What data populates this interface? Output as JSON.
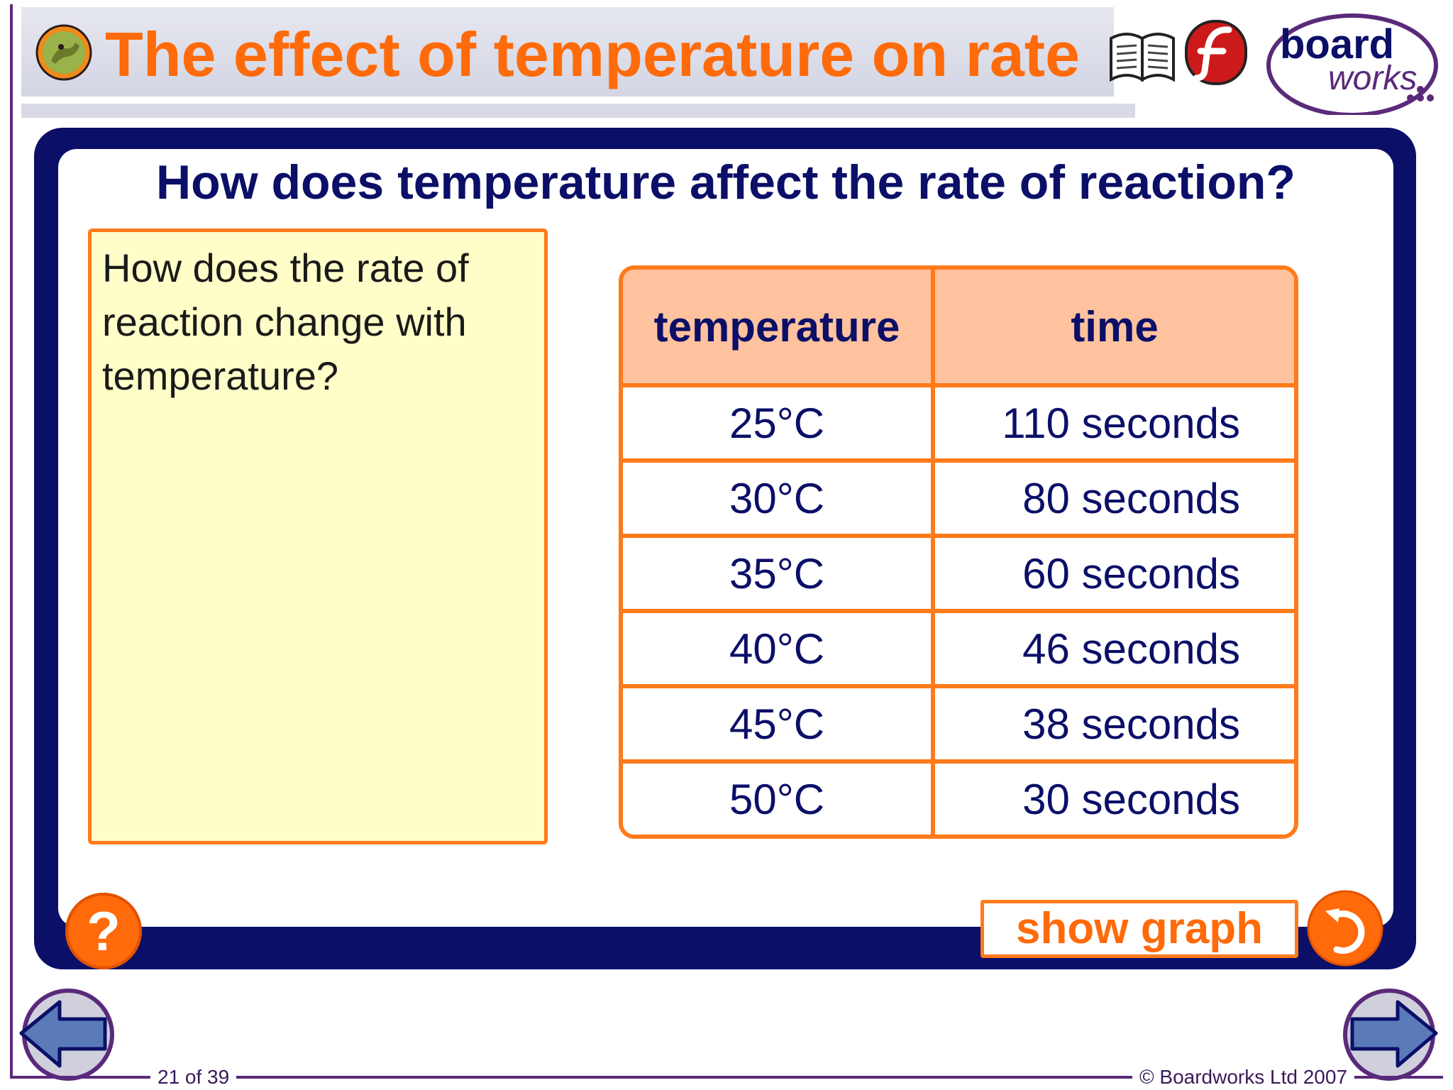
{
  "header": {
    "title": "The effect of temperature on rate",
    "brand_top": "board",
    "brand_bottom": "works",
    "icons": [
      "character-logo-icon",
      "book-icon",
      "flash-icon",
      "boardworks-logo"
    ]
  },
  "slide": {
    "question": "How does temperature affect the rate of reaction?",
    "prompt": "How does the rate of reaction change with temperature?",
    "table": {
      "headers": [
        "temperature",
        "time"
      ],
      "rows": [
        [
          "25°C",
          "110 seconds"
        ],
        [
          "30°C",
          "80 seconds"
        ],
        [
          "35°C",
          "60 seconds"
        ],
        [
          "40°C",
          "46 seconds"
        ],
        [
          "45°C",
          "38 seconds"
        ],
        [
          "50°C",
          "30 seconds"
        ]
      ]
    },
    "help_label": "?",
    "show_graph_label": "show graph"
  },
  "footer": {
    "slide_number": "21 of 39",
    "copyright": "© Boardworks Ltd 2007"
  },
  "colors": {
    "accent_orange": "#ff6a0a",
    "navy": "#0b0f68",
    "table_header": "#ffc29e",
    "prompt_bg": "#fffdc8"
  }
}
